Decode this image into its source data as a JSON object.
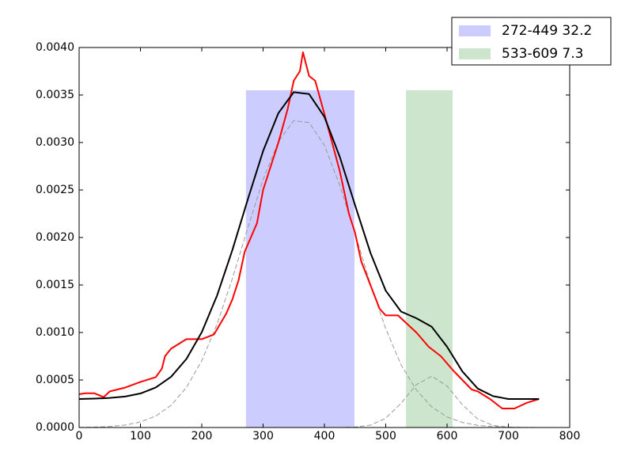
{
  "chart_data": {
    "type": "line",
    "xlim": [
      0,
      800
    ],
    "xticks": [
      0,
      100,
      200,
      300,
      400,
      500,
      600,
      700,
      800
    ],
    "ylim": [
      0,
      0.004
    ],
    "yticks": [
      {
        "value": 0,
        "label": "0.0000"
      },
      {
        "value": 0.0005,
        "label": "0.0005"
      },
      {
        "value": 0.001,
        "label": "0.0010"
      },
      {
        "value": 0.0015,
        "label": "0.0015"
      },
      {
        "value": 0.002,
        "label": "0.0020"
      },
      {
        "value": 0.0025,
        "label": "0.0025"
      },
      {
        "value": 0.003,
        "label": "0.0030"
      },
      {
        "value": 0.0035,
        "label": "0.0035"
      },
      {
        "value": 0.004,
        "label": "0.0040"
      }
    ],
    "spans": [
      {
        "label": "272-449 32.2",
        "start": 272,
        "end": 449,
        "top": 0.00355,
        "color": "#ccccff"
      },
      {
        "label": "533-609 7.3",
        "start": 533,
        "end": 609,
        "top": 0.00355,
        "color": "#cce5cc"
      }
    ],
    "series": [
      {
        "color": "#999999",
        "linestyle": "dashed",
        "x": [
          0,
          25,
          50,
          75,
          100,
          125,
          150,
          175,
          200,
          225,
          250,
          275,
          300,
          325,
          350,
          375,
          400,
          425,
          450,
          475,
          500,
          525,
          550,
          575,
          600,
          625,
          650,
          675,
          700,
          725,
          750
        ],
        "values": [
          1.5e-06,
          4.1e-06,
          1.07e-05,
          2.6e-05,
          5.8e-05,
          0.000121,
          0.000234,
          0.000422,
          0.000703,
          0.00109,
          0.00157,
          0.0021,
          0.00261,
          0.00301,
          0.00323,
          0.00321,
          0.00297,
          0.00255,
          0.00204,
          0.00151,
          0.00104,
          0.00066,
          0.000394,
          0.000217,
          0.000111,
          5.3e-05,
          2.3e-05,
          9.6e-06,
          3.7e-06,
          1.3e-06,
          4e-07
        ]
      },
      {
        "color": "#999999",
        "linestyle": "dashed",
        "x": [
          400,
          425,
          450,
          475,
          500,
          525,
          550,
          575,
          600,
          625,
          650,
          675,
          700,
          725,
          750
        ],
        "values": [
          0,
          5e-07,
          4.4e-06,
          2.53e-05,
          9.76e-05,
          0.000255,
          0.000451,
          0.00054,
          0.000437,
          0.00024,
          8.9e-05,
          2.22e-05,
          3.8e-06,
          4e-07,
          0
        ]
      },
      {
        "color": "#ff0000",
        "linestyle": "solid",
        "x": [
          0,
          10,
          25,
          40,
          50,
          75,
          100,
          125,
          135,
          140,
          150,
          175,
          200,
          220,
          240,
          250,
          260,
          270,
          280,
          290,
          300,
          310,
          325,
          340,
          350,
          360,
          365,
          375,
          385,
          400,
          425,
          440,
          450,
          460,
          475,
          490,
          500,
          520,
          530,
          550,
          570,
          590,
          610,
          625,
          640,
          650,
          670,
          690,
          710,
          730,
          750
        ],
        "values": [
          0.00035,
          0.00036,
          0.00036,
          0.00032,
          0.00038,
          0.00042,
          0.00048,
          0.00053,
          0.00062,
          0.00075,
          0.00083,
          0.00093,
          0.00093,
          0.00098,
          0.0012,
          0.00135,
          0.00155,
          0.00185,
          0.002,
          0.00215,
          0.0025,
          0.0027,
          0.003,
          0.00335,
          0.00365,
          0.00375,
          0.00395,
          0.0037,
          0.00365,
          0.0033,
          0.0027,
          0.00225,
          0.00205,
          0.00175,
          0.0015,
          0.00125,
          0.00118,
          0.00118,
          0.00112,
          0.001,
          0.00085,
          0.00075,
          0.0006,
          0.0005,
          0.0004,
          0.00038,
          0.0003,
          0.0002,
          0.0002,
          0.00026,
          0.0003
        ]
      },
      {
        "color": "#000000",
        "linestyle": "solid",
        "x": [
          0,
          25,
          50,
          75,
          100,
          125,
          150,
          175,
          200,
          225,
          250,
          275,
          300,
          325,
          350,
          375,
          400,
          425,
          450,
          475,
          500,
          525,
          550,
          575,
          600,
          625,
          650,
          675,
          700,
          725,
          750
        ],
        "values": [
          0.0003,
          0.000304,
          0.000311,
          0.000326,
          0.000358,
          0.000421,
          0.000534,
          0.000722,
          0.001003,
          0.00139,
          0.00187,
          0.0024,
          0.00291,
          0.00331,
          0.00353,
          0.00351,
          0.00327,
          0.00285,
          0.00234,
          0.00184,
          0.00144,
          0.00122,
          0.00115,
          0.00106,
          0.00085,
          0.00059,
          0.00041,
          0.00033,
          0.0003,
          0.0003,
          0.0003
        ]
      }
    ]
  }
}
